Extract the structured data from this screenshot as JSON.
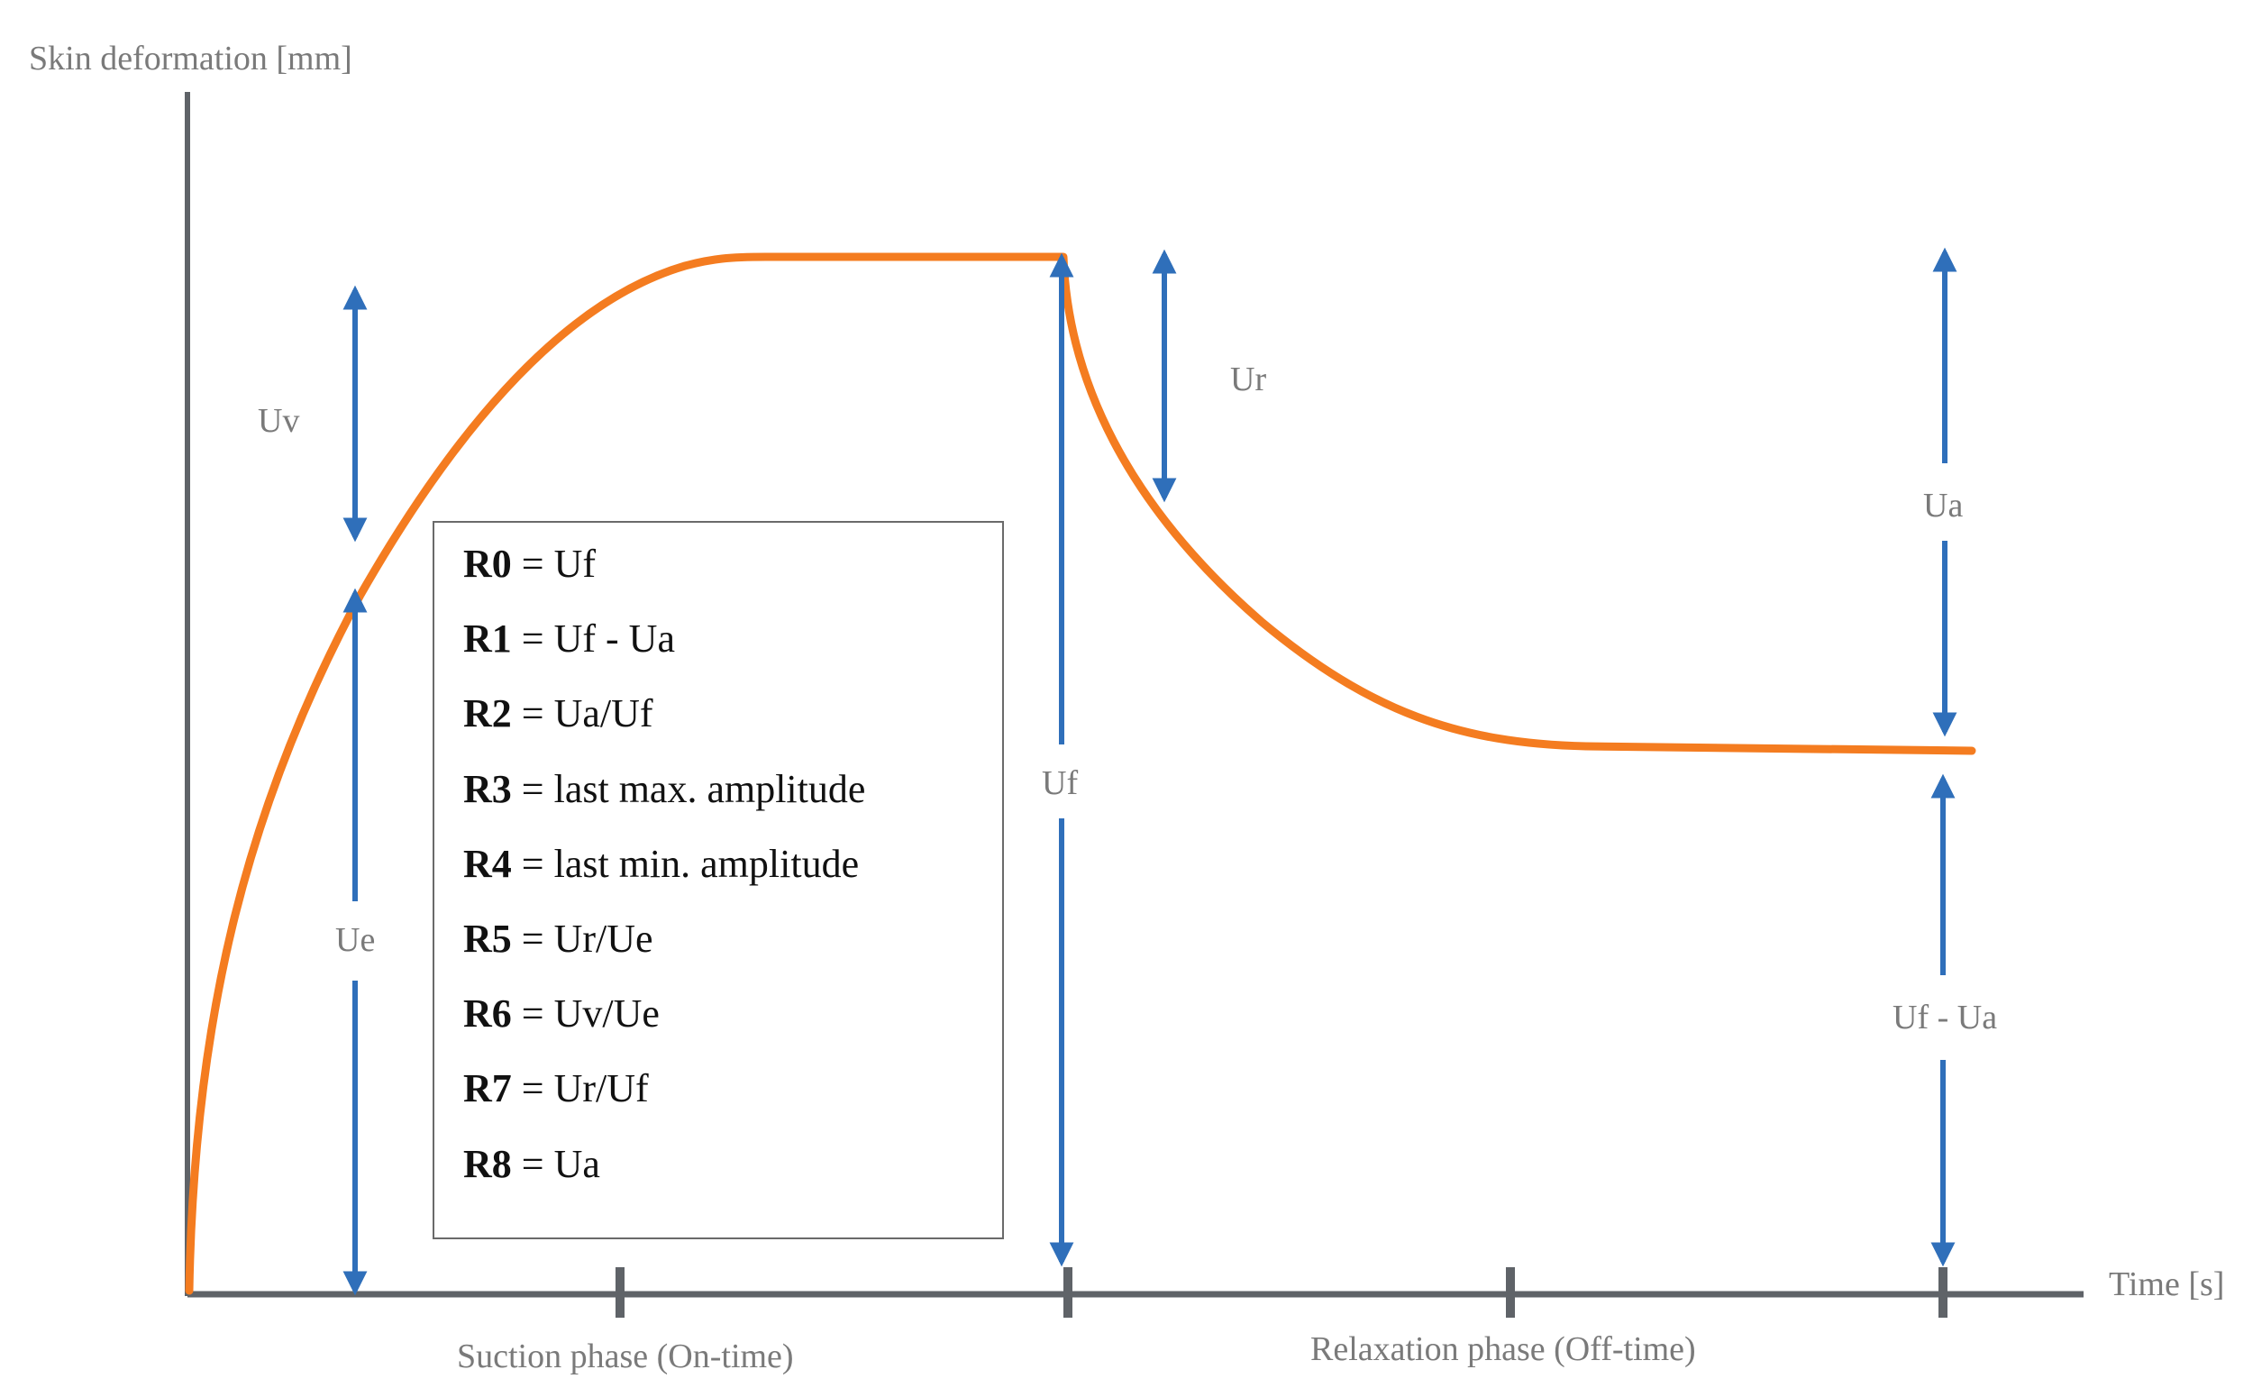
{
  "axes": {
    "y_title": "Skin deformation [mm]",
    "x_title": "Time [s]"
  },
  "phases": {
    "suction": "Suction phase (On-time)",
    "relaxation": "Relaxation phase (Off-time)"
  },
  "arrows": {
    "uv": "Uv",
    "ue": "Ue",
    "uf": "Uf",
    "ur": "Ur",
    "ua": "Ua",
    "uf_minus_ua": "Uf - Ua"
  },
  "legend": [
    {
      "param": "R0",
      "def": " = Uf"
    },
    {
      "param": "R1",
      "def": " = Uf - Ua"
    },
    {
      "param": "R2",
      "def": " = Ua/Uf"
    },
    {
      "param": "R3",
      "def": " = last max. amplitude"
    },
    {
      "param": "R4",
      "def": " = last min. amplitude"
    },
    {
      "param": "R5",
      "def": " = Ur/Ue"
    },
    {
      "param": "R6",
      "def": " = Uv/Ue"
    },
    {
      "param": "R7",
      "def": " = Ur/Uf"
    },
    {
      "param": "R8",
      "def": " = Ua"
    }
  ],
  "colors": {
    "curve": "#f47c20",
    "arrow": "#2f6fba",
    "axis": "#5f6368",
    "label": "#7a7a7a"
  }
}
